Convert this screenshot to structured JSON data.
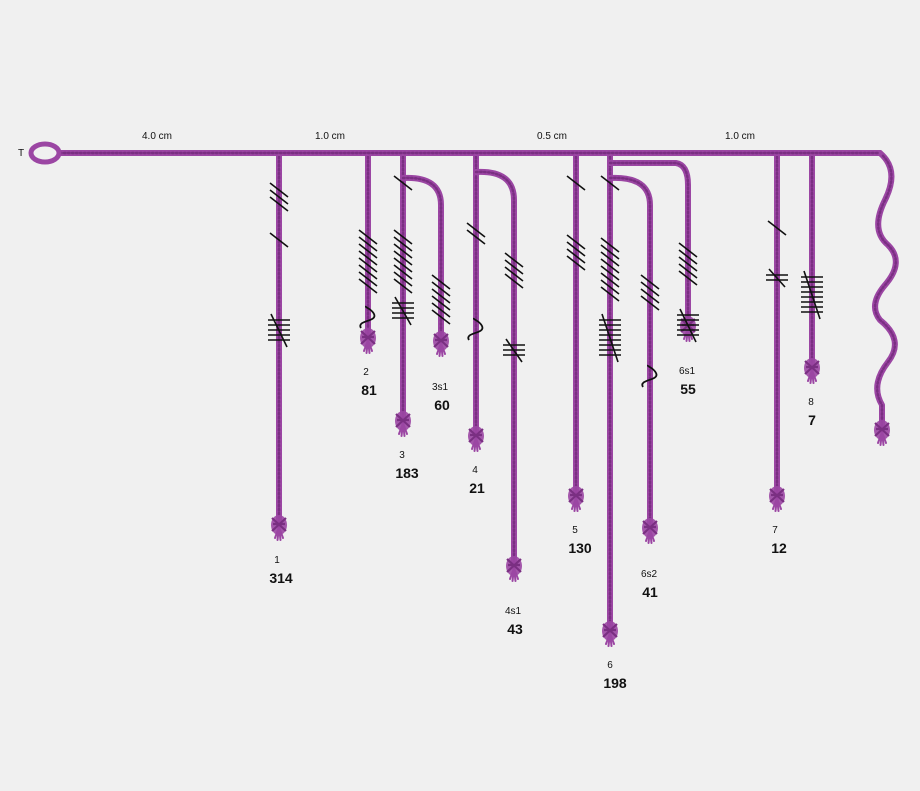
{
  "diagram": {
    "top_label": "T",
    "spacing_labels": [
      "4.0 cm",
      "1.0 cm",
      "0.5 cm",
      "1.0 cm"
    ],
    "colors": {
      "cord": "#9b46a3",
      "cord_dark": "#7a2f82",
      "knot_mark": "#111111",
      "background": "#f0f0f0"
    },
    "cords": [
      {
        "id": "1",
        "total": "314"
      },
      {
        "id": "2",
        "total": "81"
      },
      {
        "id": "3",
        "total": "183"
      },
      {
        "id": "3s1",
        "total": "60"
      },
      {
        "id": "4",
        "total": "21"
      },
      {
        "id": "4s1",
        "total": "43"
      },
      {
        "id": "5",
        "total": "130"
      },
      {
        "id": "6",
        "total": "198"
      },
      {
        "id": "6s1",
        "total": "55"
      },
      {
        "id": "6s2",
        "total": "41"
      },
      {
        "id": "7",
        "total": "12"
      },
      {
        "id": "8",
        "total": "7"
      },
      {
        "id": "",
        "total": ""
      }
    ]
  }
}
